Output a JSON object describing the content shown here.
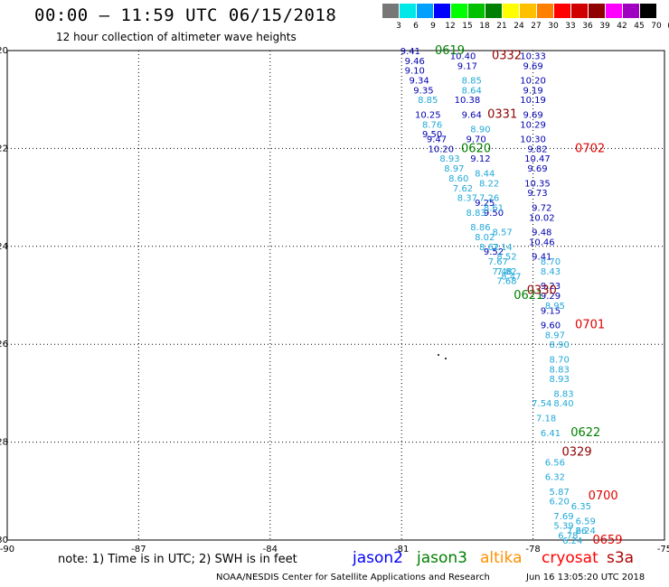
{
  "header": {
    "title": "00:00 – 11:59 UTC 06/15/2018",
    "subtitle": "12 hour collection of altimeter wave heights"
  },
  "color_scale": {
    "labels": [
      "3",
      "6",
      "9",
      "12",
      "15",
      "18",
      "21",
      "24",
      "27",
      "30",
      "33",
      "36",
      "39",
      "42",
      "45",
      "70",
      "(ft)"
    ],
    "colors": [
      "#777777",
      "#00e8e8",
      "#00a0ff",
      "#0000ff",
      "#00ff00",
      "#00c000",
      "#008000",
      "#ffff00",
      "#ffc000",
      "#ff8000",
      "#ff0000",
      "#d00000",
      "#900000",
      "#ff00ff",
      "#a000c0",
      "#000000"
    ]
  },
  "footer": {
    "note": "note: 1) Time is in UTC; 2) SWH is in feet",
    "legend": [
      {
        "label": "jason2",
        "color": "#0000ff"
      },
      {
        "label": "jason3",
        "color": "#008000"
      },
      {
        "label": "altika",
        "color": "#ff9000"
      },
      {
        "label": "cryosat",
        "color": "#ff0000"
      },
      {
        "label": "s3a",
        "color": "#b00000"
      }
    ],
    "credit": "NOAA/NESDIS Center for Satellite Applications and Research",
    "timestamp": "Jun 16 13:05:20 UTC 2018"
  },
  "chart_data": {
    "type": "scatter",
    "title": "00:00 – 11:59 UTC 06/15/2018",
    "subtitle": "12 hour collection of altimeter wave heights",
    "xlim": [
      -90,
      -75
    ],
    "ylim": [
      -30,
      -20
    ],
    "x_ticks": [
      -90,
      -87,
      -84,
      -81,
      -78,
      -75
    ],
    "y_ticks": [
      -20,
      -22,
      -24,
      -26,
      -28,
      -30
    ],
    "grid": true,
    "grid_style": "dotted",
    "tracks": [
      {
        "satellite": "jason2",
        "color": "#0000b0",
        "points": [
          {
            "lon": -78.0,
            "lat": -20.1,
            "swh": "10.33"
          },
          {
            "lon": -78.0,
            "lat": -20.3,
            "swh": "9.69"
          },
          {
            "lon": -78.0,
            "lat": -20.6,
            "swh": "10.20"
          },
          {
            "lon": -78.0,
            "lat": -20.8,
            "swh": "9.19"
          },
          {
            "lon": -78.0,
            "lat": -21.0,
            "swh": "10.19"
          },
          {
            "lon": -78.0,
            "lat": -21.3,
            "swh": "9.69"
          },
          {
            "lon": -78.0,
            "lat": -21.5,
            "swh": "10.29"
          },
          {
            "lon": -78.0,
            "lat": -21.8,
            "swh": "10.30"
          },
          {
            "lon": -77.9,
            "lat": -22.0,
            "swh": "9.82"
          },
          {
            "lon": -77.9,
            "lat": -22.2,
            "swh": "10.47"
          },
          {
            "lon": -77.9,
            "lat": -22.4,
            "swh": "9.69"
          },
          {
            "lon": -77.9,
            "lat": -22.7,
            "swh": "10.35"
          },
          {
            "lon": -77.9,
            "lat": -22.9,
            "swh": "9.73"
          },
          {
            "lon": -77.8,
            "lat": -23.2,
            "swh": "9.72"
          },
          {
            "lon": -77.8,
            "lat": -23.4,
            "swh": "10.02"
          },
          {
            "lon": -77.8,
            "lat": -23.7,
            "swh": "9.48"
          },
          {
            "lon": -77.8,
            "lat": -23.9,
            "swh": "10.46"
          },
          {
            "lon": -77.8,
            "lat": -24.2,
            "swh": "9.41"
          },
          {
            "lon": -80.8,
            "lat": -20.0,
            "swh": "9.41"
          },
          {
            "lon": -80.7,
            "lat": -20.2,
            "swh": "9.46"
          },
          {
            "lon": -80.7,
            "lat": -20.4,
            "swh": "9.10"
          },
          {
            "lon": -80.6,
            "lat": -20.6,
            "swh": "9.34"
          },
          {
            "lon": -80.5,
            "lat": -20.8,
            "swh": "9.35"
          },
          {
            "lon": -80.4,
            "lat": -21.3,
            "swh": "10.25"
          },
          {
            "lon": -80.3,
            "lat": -21.7,
            "swh": "9.50"
          },
          {
            "lon": -80.2,
            "lat": -21.8,
            "swh": "9.47"
          },
          {
            "lon": -80.1,
            "lat": -22.0,
            "swh": "10.20"
          },
          {
            "lon": -79.6,
            "lat": -20.1,
            "swh": "10.40"
          },
          {
            "lon": -79.5,
            "lat": -20.3,
            "swh": "9.17"
          },
          {
            "lon": -79.5,
            "lat": -21.0,
            "swh": "10.38"
          },
          {
            "lon": -79.4,
            "lat": -21.3,
            "swh": "9.64"
          },
          {
            "lon": -79.3,
            "lat": -21.8,
            "swh": "9.70"
          },
          {
            "lon": -79.2,
            "lat": -22.2,
            "swh": "9.12"
          },
          {
            "lon": -78.9,
            "lat": -23.3,
            "swh": "9.50"
          },
          {
            "lon": -79.1,
            "lat": -23.1,
            "swh": "9.25"
          },
          {
            "lon": -78.9,
            "lat": -24.1,
            "swh": "9.52"
          },
          {
            "lon": -77.6,
            "lat": -24.8,
            "swh": "9.23"
          },
          {
            "lon": -77.6,
            "lat": -25.0,
            "swh": "9.29"
          },
          {
            "lon": -77.6,
            "lat": -25.3,
            "swh": "9.15"
          },
          {
            "lon": -77.6,
            "lat": -25.6,
            "swh": "9.60"
          }
        ]
      },
      {
        "satellite": "altika",
        "color": "#20a8d8",
        "points": [
          {
            "lon": -79.4,
            "lat": -20.6,
            "swh": "8.85"
          },
          {
            "lon": -79.4,
            "lat": -20.8,
            "swh": "8.64"
          },
          {
            "lon": -79.2,
            "lat": -21.6,
            "swh": "8.90"
          },
          {
            "lon": -80.4,
            "lat": -21.0,
            "swh": "8.85"
          },
          {
            "lon": -80.3,
            "lat": -21.5,
            "swh": "8.76"
          },
          {
            "lon": -79.9,
            "lat": -22.2,
            "swh": "8.93"
          },
          {
            "lon": -79.8,
            "lat": -22.4,
            "swh": "8.97"
          },
          {
            "lon": -79.7,
            "lat": -22.6,
            "swh": "8.60"
          },
          {
            "lon": -79.6,
            "lat": -22.8,
            "swh": "7.62"
          },
          {
            "lon": -79.5,
            "lat": -23.0,
            "swh": "8.37"
          },
          {
            "lon": -79.3,
            "lat": -23.3,
            "swh": "8.83"
          },
          {
            "lon": -79.2,
            "lat": -23.6,
            "swh": "8.86"
          },
          {
            "lon": -79.1,
            "lat": -23.8,
            "swh": "8.02"
          },
          {
            "lon": -79.0,
            "lat": -24.0,
            "swh": "8.62"
          },
          {
            "lon": -79.1,
            "lat": -22.5,
            "swh": "8.44"
          },
          {
            "lon": -79.0,
            "lat": -22.7,
            "swh": "8.22"
          },
          {
            "lon": -79.0,
            "lat": -23.0,
            "swh": "7.26"
          },
          {
            "lon": -78.9,
            "lat": -23.2,
            "swh": "8.61"
          },
          {
            "lon": -78.7,
            "lat": -23.7,
            "swh": "8.57"
          },
          {
            "lon": -78.7,
            "lat": -24.0,
            "swh": "7.14"
          },
          {
            "lon": -78.6,
            "lat": -24.2,
            "swh": "8.52"
          },
          {
            "lon": -78.8,
            "lat": -24.3,
            "swh": "7.67"
          },
          {
            "lon": -78.6,
            "lat": -24.5,
            "swh": "7.82"
          },
          {
            "lon": -78.7,
            "lat": -24.5,
            "swh": "7.48"
          },
          {
            "lon": -78.5,
            "lat": -24.6,
            "swh": "8.47"
          },
          {
            "lon": -78.6,
            "lat": -24.7,
            "swh": "7.68"
          },
          {
            "lon": -77.6,
            "lat": -24.3,
            "swh": "8.70"
          },
          {
            "lon": -77.6,
            "lat": -24.5,
            "swh": "8.43"
          },
          {
            "lon": -77.5,
            "lat": -25.2,
            "swh": "8.95"
          },
          {
            "lon": -77.5,
            "lat": -25.8,
            "swh": "8.97"
          },
          {
            "lon": -77.4,
            "lat": -26.0,
            "swh": "8.90"
          },
          {
            "lon": -77.4,
            "lat": -26.3,
            "swh": "8.70"
          },
          {
            "lon": -77.4,
            "lat": -26.5,
            "swh": "8.83"
          },
          {
            "lon": -77.4,
            "lat": -26.7,
            "swh": "8.93"
          },
          {
            "lon": -77.3,
            "lat": -27.0,
            "swh": "8.83"
          },
          {
            "lon": -77.3,
            "lat": -27.2,
            "swh": "8.40"
          },
          {
            "lon": -77.8,
            "lat": -27.2,
            "swh": "7.54"
          },
          {
            "lon": -77.7,
            "lat": -27.5,
            "swh": "7.18"
          },
          {
            "lon": -77.6,
            "lat": -27.8,
            "swh": "6.41"
          },
          {
            "lon": -77.5,
            "lat": -28.4,
            "swh": "6.56"
          },
          {
            "lon": -77.5,
            "lat": -28.7,
            "swh": "6.32"
          },
          {
            "lon": -77.4,
            "lat": -29.0,
            "swh": "5.87"
          },
          {
            "lon": -77.4,
            "lat": -29.2,
            "swh": "6.20"
          },
          {
            "lon": -77.3,
            "lat": -29.5,
            "swh": "7.69"
          },
          {
            "lon": -77.3,
            "lat": -29.7,
            "swh": "5.39"
          },
          {
            "lon": -77.2,
            "lat": -29.9,
            "swh": "6.78"
          },
          {
            "lon": -76.9,
            "lat": -29.3,
            "swh": "6.35"
          },
          {
            "lon": -76.8,
            "lat": -29.6,
            "swh": "6.59"
          },
          {
            "lon": -76.8,
            "lat": -29.8,
            "swh": "6.24"
          },
          {
            "lon": -77.0,
            "lat": -29.8,
            "swh": "7.26"
          },
          {
            "lon": -77.1,
            "lat": -30.0,
            "swh": "6.24"
          }
        ]
      },
      {
        "satellite": "jason3",
        "color": "#008000",
        "points": [
          {
            "lon": -79.9,
            "lat": -20.0,
            "swh": "0619",
            "is_label": true
          },
          {
            "lon": -79.3,
            "lat": -22.0,
            "swh": "0620",
            "is_label": true
          },
          {
            "lon": -78.1,
            "lat": -25.0,
            "swh": "0621",
            "is_label": true
          },
          {
            "lon": -76.8,
            "lat": -27.8,
            "swh": "0622",
            "is_label": true
          }
        ]
      },
      {
        "satellite": "s3a",
        "color": "#900000",
        "points": [
          {
            "lon": -78.6,
            "lat": -20.1,
            "swh": "0332",
            "is_label": true
          },
          {
            "lon": -78.7,
            "lat": -21.3,
            "swh": "0331",
            "is_label": true
          },
          {
            "lon": -77.8,
            "lat": -24.9,
            "swh": "0330",
            "is_label": true
          },
          {
            "lon": -77.0,
            "lat": -28.2,
            "swh": "0329",
            "is_label": true
          }
        ]
      },
      {
        "satellite": "cryosat",
        "color": "#e00000",
        "points": [
          {
            "lon": -76.7,
            "lat": -22.0,
            "swh": "0702",
            "is_label": true
          },
          {
            "lon": -76.7,
            "lat": -25.6,
            "swh": "0701",
            "is_label": true
          },
          {
            "lon": -76.4,
            "lat": -29.1,
            "swh": "0700",
            "is_label": true
          },
          {
            "lon": -76.3,
            "lat": -30.0,
            "swh": "0659",
            "is_label": true
          }
        ]
      }
    ]
  }
}
